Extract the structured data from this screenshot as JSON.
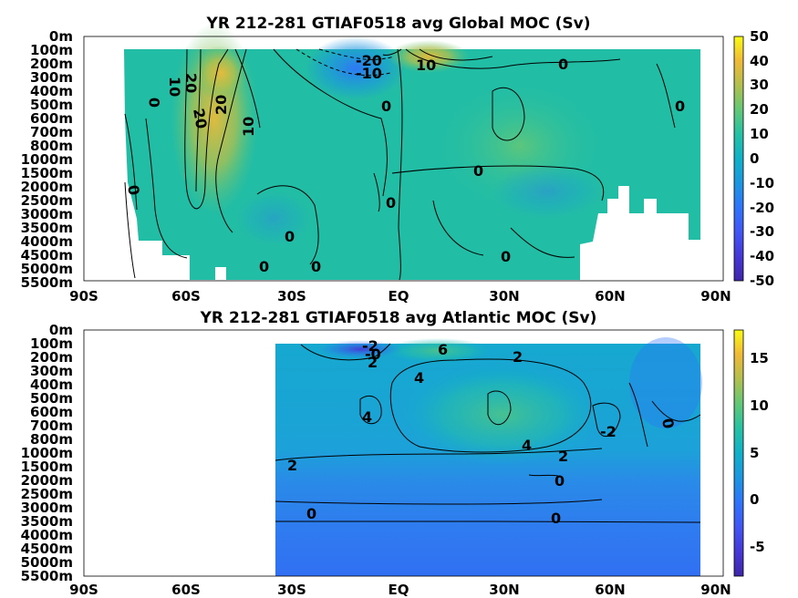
{
  "chart_data": [
    {
      "type": "heatmap",
      "title": "YR 212-281 GTIAF0518 avg  Global MOC (Sv)",
      "x_ticks": [
        "90S",
        "60S",
        "30S",
        "EQ",
        "30N",
        "60N",
        "90N"
      ],
      "x_values": [
        -90,
        -60,
        -30,
        0,
        30,
        60,
        90
      ],
      "y_ticks": [
        "0m",
        "100m",
        "200m",
        "300m",
        "400m",
        "500m",
        "600m",
        "700m",
        "800m",
        "1000m",
        "1500m",
        "2000m",
        "2500m",
        "3000m",
        "3500m",
        "4000m",
        "4500m",
        "5000m",
        "5500m"
      ],
      "colorbar": {
        "ticks": [
          50,
          40,
          30,
          20,
          10,
          0,
          -10,
          -20,
          -30,
          -40,
          -50
        ],
        "range": [
          -50,
          50
        ]
      },
      "contour_labels": [
        "-20",
        "-10",
        "10",
        "0",
        "20",
        "10",
        "20",
        "0",
        "20",
        "10",
        "0",
        "0",
        "0",
        "0",
        "0",
        "0",
        "0",
        "0",
        "0"
      ]
    },
    {
      "type": "heatmap",
      "title": "YR 212-281 GTIAF0518 avg  Atlantic MOC (Sv)",
      "x_ticks": [
        "90S",
        "60S",
        "30S",
        "EQ",
        "30N",
        "60N",
        "90N"
      ],
      "x_values": [
        -90,
        -60,
        -30,
        0,
        30,
        60,
        90
      ],
      "y_ticks": [
        "0m",
        "100m",
        "200m",
        "300m",
        "400m",
        "500m",
        "600m",
        "700m",
        "800m",
        "1000m",
        "1500m",
        "2000m",
        "2500m",
        "3000m",
        "3500m",
        "4000m",
        "4500m",
        "5000m",
        "5500m"
      ],
      "colorbar": {
        "ticks": [
          15,
          10,
          5,
          0,
          -5
        ],
        "range": [
          -8.5,
          18
        ]
      },
      "contour_labels": [
        "-2",
        "-0",
        "2",
        "6",
        "2",
        "4",
        "4",
        "4",
        "2",
        "2",
        "0",
        "0",
        "0",
        "0",
        "-2"
      ]
    }
  ]
}
